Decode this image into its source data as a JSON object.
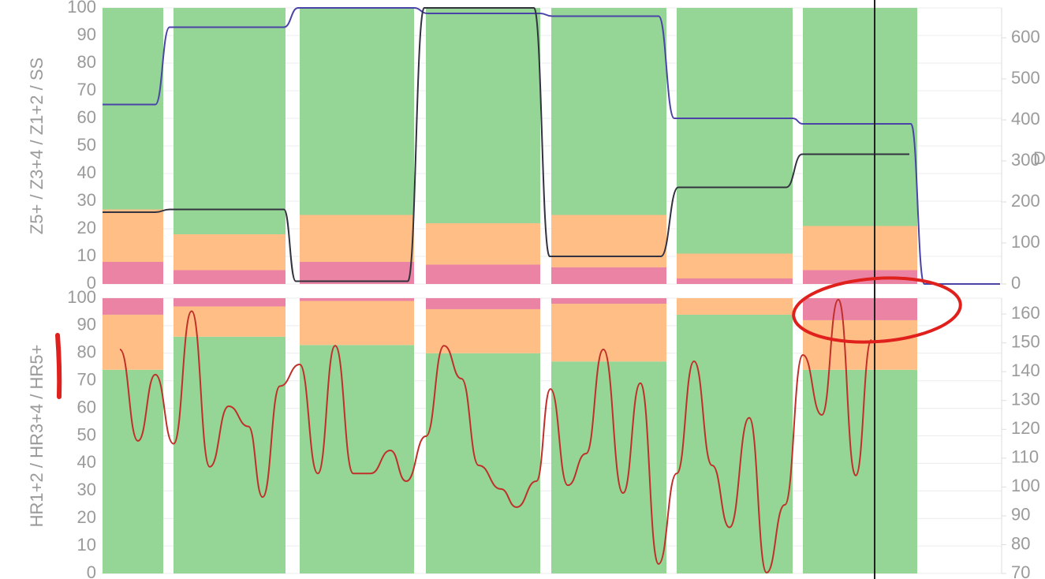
{
  "chart_data": [
    {
      "type": "bar",
      "stacked": true,
      "y_label": "Z5+ / Z3+4 / Z1+2 / SS",
      "y2_label": "D",
      "categories": [
        null,
        null,
        null,
        null,
        null,
        null,
        null
      ],
      "ylim": [
        0,
        100
      ],
      "yticks": [
        0,
        10,
        20,
        30,
        40,
        50,
        60,
        70,
        80,
        90,
        100
      ],
      "y2lim": [
        0,
        673
      ],
      "y2ticks": [
        0,
        100,
        200,
        300,
        400,
        500,
        600
      ],
      "xlim": [
        0,
        114
      ],
      "grid": true,
      "series": [
        {
          "color": "#eb83a5",
          "values": [
            8,
            5,
            8,
            7,
            6,
            2,
            5
          ]
        },
        {
          "color": "#ffbe86",
          "values": [
            19,
            13,
            17,
            15,
            19,
            9,
            16
          ]
        },
        {
          "color": "#95d596",
          "values": [
            73,
            82,
            75,
            78,
            75,
            89,
            79
          ]
        },
        {
          "type": "line",
          "color": "#4b44a8",
          "x": [
            0,
            6.7,
            8.5,
            23,
            24.8,
            39.5,
            41.2,
            55.5,
            57,
            70.5,
            72.5,
            87.5,
            88.8,
            102.5,
            104.2,
            113.8
          ],
          "values": [
            65,
            65,
            93,
            93,
            100,
            100,
            98,
            98,
            97,
            97,
            60,
            60,
            58,
            58,
            0,
            0
          ]
        },
        {
          "type": "line",
          "color": "#333340",
          "x": [
            0,
            6.7,
            8.5,
            23,
            24.5,
            38.7,
            40.8,
            54.7,
            56.7,
            70.8,
            73,
            86.7,
            88.7,
            102.3
          ],
          "values": [
            26,
            26,
            27,
            27,
            1,
            1,
            100,
            100,
            10,
            10,
            35,
            35,
            47,
            47
          ]
        }
      ]
    },
    {
      "type": "bar",
      "stacked": true,
      "y_label": "HR1+2 / HR3+4 / HR5+",
      "categories": [
        null,
        null,
        null,
        null,
        null,
        null,
        null
      ],
      "ylim": [
        0,
        100
      ],
      "yticks": [
        0,
        10,
        20,
        30,
        40,
        50,
        60,
        70,
        80,
        90,
        100
      ],
      "y2lim": [
        70,
        165.5
      ],
      "y2ticks": [
        70,
        80,
        90,
        100,
        110,
        120,
        130,
        140,
        150,
        160
      ],
      "xlim": [
        0,
        114
      ],
      "grid": true,
      "series": [
        {
          "color": "#95d596",
          "values": [
            74,
            86,
            83,
            80,
            77,
            94,
            74
          ]
        },
        {
          "color": "#ffbe86",
          "values": [
            20,
            11,
            16,
            16,
            21,
            6,
            18
          ]
        },
        {
          "color": "#eb83a5",
          "values": [
            6,
            3,
            1,
            4,
            2,
            0,
            8
          ]
        },
        {
          "type": "line",
          "color": "#c0302a",
          "axis": "y2",
          "x": [
            2.2,
            4.5,
            6.7,
            9,
            11.3,
            13.6,
            16,
            18.5,
            20.3,
            22.5,
            25,
            27.3,
            29.5,
            31.8,
            34,
            36.5,
            38.5,
            41,
            43.3,
            45.5,
            47.7,
            50.5,
            52.5,
            55,
            56.8,
            59,
            61.3,
            63.5,
            66,
            68.2,
            70.5,
            72.8,
            75,
            77.3,
            79.5,
            82,
            84.2,
            86.5,
            88.8,
            91.2,
            93.3,
            95.5,
            97.5
          ],
          "values": [
            147.7,
            116,
            139,
            115,
            161,
            107,
            128,
            121,
            96.5,
            135,
            142.5,
            104.7,
            149,
            104.7,
            104.7,
            112.7,
            102,
            117.6,
            149,
            137.6,
            107.5,
            99.3,
            93,
            102,
            134,
            100.6,
            111.6,
            147.7,
            97.9,
            136,
            73.3,
            104.7,
            143.6,
            107.5,
            86,
            124,
            70.3,
            93.8,
            145.8,
            125,
            165,
            104,
            151
          ]
        }
      ]
    }
  ]
}
